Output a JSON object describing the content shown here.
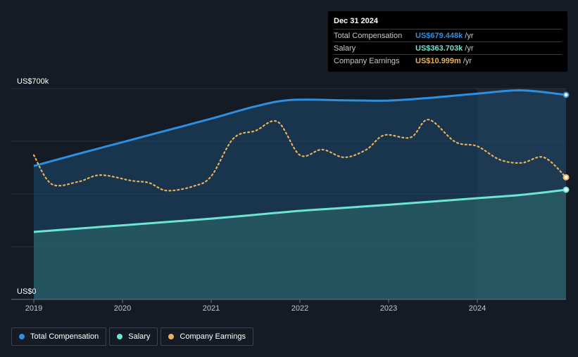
{
  "chart_data": {
    "type": "area",
    "y_axis": {
      "top_label": "US$700k",
      "bottom_label": "US$0",
      "ylim": [
        0,
        700
      ]
    },
    "x_ticks": [
      "2019",
      "2020",
      "2021",
      "2022",
      "2023",
      "2024"
    ],
    "series": [
      {
        "name": "Total Compensation",
        "unit": "US$k",
        "color": "#2d8fe0",
        "points": [
          [
            2019.0,
            443
          ],
          [
            2019.5,
            483
          ],
          [
            2020.0,
            522
          ],
          [
            2020.5,
            561
          ],
          [
            2021.0,
            600
          ],
          [
            2021.5,
            641
          ],
          [
            2021.9,
            662
          ],
          [
            2022.5,
            661
          ],
          [
            2023.0,
            660
          ],
          [
            2023.5,
            670
          ],
          [
            2024.0,
            683
          ],
          [
            2024.5,
            694
          ],
          [
            2025.0,
            679
          ]
        ]
      },
      {
        "name": "Salary",
        "unit": "US$k",
        "color": "#6ee4d4",
        "points": [
          [
            2019.0,
            224
          ],
          [
            2019.5,
            235
          ],
          [
            2020.0,
            246
          ],
          [
            2020.5,
            257
          ],
          [
            2021.0,
            268
          ],
          [
            2021.5,
            281
          ],
          [
            2022.0,
            294
          ],
          [
            2022.5,
            304
          ],
          [
            2023.0,
            314
          ],
          [
            2023.5,
            325
          ],
          [
            2024.0,
            336
          ],
          [
            2024.5,
            347
          ],
          [
            2025.0,
            364
          ]
        ]
      },
      {
        "name": "Company Earnings",
        "unit": "US$m",
        "color": "#e8b15c",
        "style": "dotted",
        "points": [
          [
            2019.0,
            13.0
          ],
          [
            2019.2,
            10.4
          ],
          [
            2019.5,
            10.6
          ],
          [
            2019.75,
            11.2
          ],
          [
            2020.1,
            10.7
          ],
          [
            2020.3,
            10.5
          ],
          [
            2020.5,
            9.8
          ],
          [
            2020.8,
            10.2
          ],
          [
            2021.0,
            11.1
          ],
          [
            2021.25,
            14.5
          ],
          [
            2021.5,
            15.2
          ],
          [
            2021.75,
            16.0
          ],
          [
            2022.0,
            13.0
          ],
          [
            2022.25,
            13.5
          ],
          [
            2022.5,
            12.8
          ],
          [
            2022.75,
            13.5
          ],
          [
            2022.95,
            14.8
          ],
          [
            2023.25,
            14.6
          ],
          [
            2023.45,
            16.2
          ],
          [
            2023.75,
            14.2
          ],
          [
            2024.0,
            13.8
          ],
          [
            2024.25,
            12.6
          ],
          [
            2024.5,
            12.3
          ],
          [
            2024.75,
            12.8
          ],
          [
            2025.0,
            11.0
          ]
        ]
      }
    ],
    "highlight_region_start": 2024
  },
  "tooltip": {
    "date": "Dec 31 2024",
    "rows": [
      {
        "label": "Total Compensation",
        "value": "US$679.448k",
        "unit": "/yr",
        "color": "#2d8fe0"
      },
      {
        "label": "Salary",
        "value": "US$363.703k",
        "unit": "/yr",
        "color": "#6ee4d4"
      },
      {
        "label": "Company Earnings",
        "value": "US$10.999m",
        "unit": "/yr",
        "color": "#e8b15c"
      }
    ]
  },
  "legend": [
    {
      "label": "Total Compensation",
      "color": "#2d8fe0"
    },
    {
      "label": "Salary",
      "color": "#6ee4d4"
    },
    {
      "label": "Company Earnings",
      "color": "#e8b15c"
    }
  ]
}
